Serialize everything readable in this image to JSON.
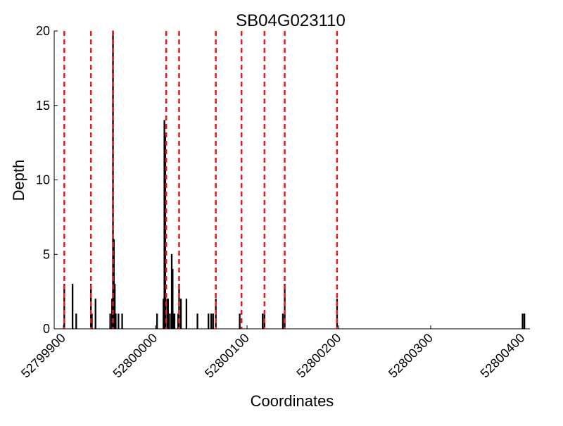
{
  "chart_data": {
    "type": "bar",
    "title": "SB04G023110",
    "x_label": "Coordinates",
    "y_label": "Depth",
    "x": [
      52799901,
      52799910,
      52799914,
      52799930,
      52799931,
      52799935,
      52799951,
      52799953,
      52799954,
      52799955,
      52799956,
      52799957,
      52799960,
      52799964,
      52800002,
      52800009,
      52800010,
      52800011,
      52800013,
      52800014,
      52800016,
      52800018,
      52800019,
      52800020,
      52800021,
      52800025,
      52800026,
      52800028,
      52800034,
      52800046,
      52800058,
      52800061,
      52800063,
      52800066,
      52800092,
      52800117,
      52800119,
      52800139,
      52800141,
      52800198,
      52800400,
      52800402
    ],
    "values": [
      3,
      3,
      1,
      3,
      1,
      2,
      1,
      2,
      20,
      6,
      3,
      1,
      1,
      1,
      1,
      2,
      14,
      13,
      2,
      2,
      1,
      5,
      4,
      1,
      1,
      1,
      3,
      2,
      2,
      1,
      1,
      1,
      1,
      2,
      1,
      1,
      1,
      1,
      3,
      2,
      1,
      1
    ],
    "color": "#000000",
    "vlines": [
      52799901,
      52799930,
      52799954,
      52800012,
      52800026,
      52800066,
      52800094,
      52800119,
      52800141,
      52800198
    ],
    "vline_color": "#e41a1c",
    "xlim": [
      52799890,
      52800408
    ],
    "xticks": [
      52799900,
      52800000,
      52800100,
      52800200,
      52800300,
      52800400
    ],
    "ylim": [
      0,
      20
    ],
    "yticks": [
      0,
      5,
      10,
      15,
      20
    ]
  }
}
